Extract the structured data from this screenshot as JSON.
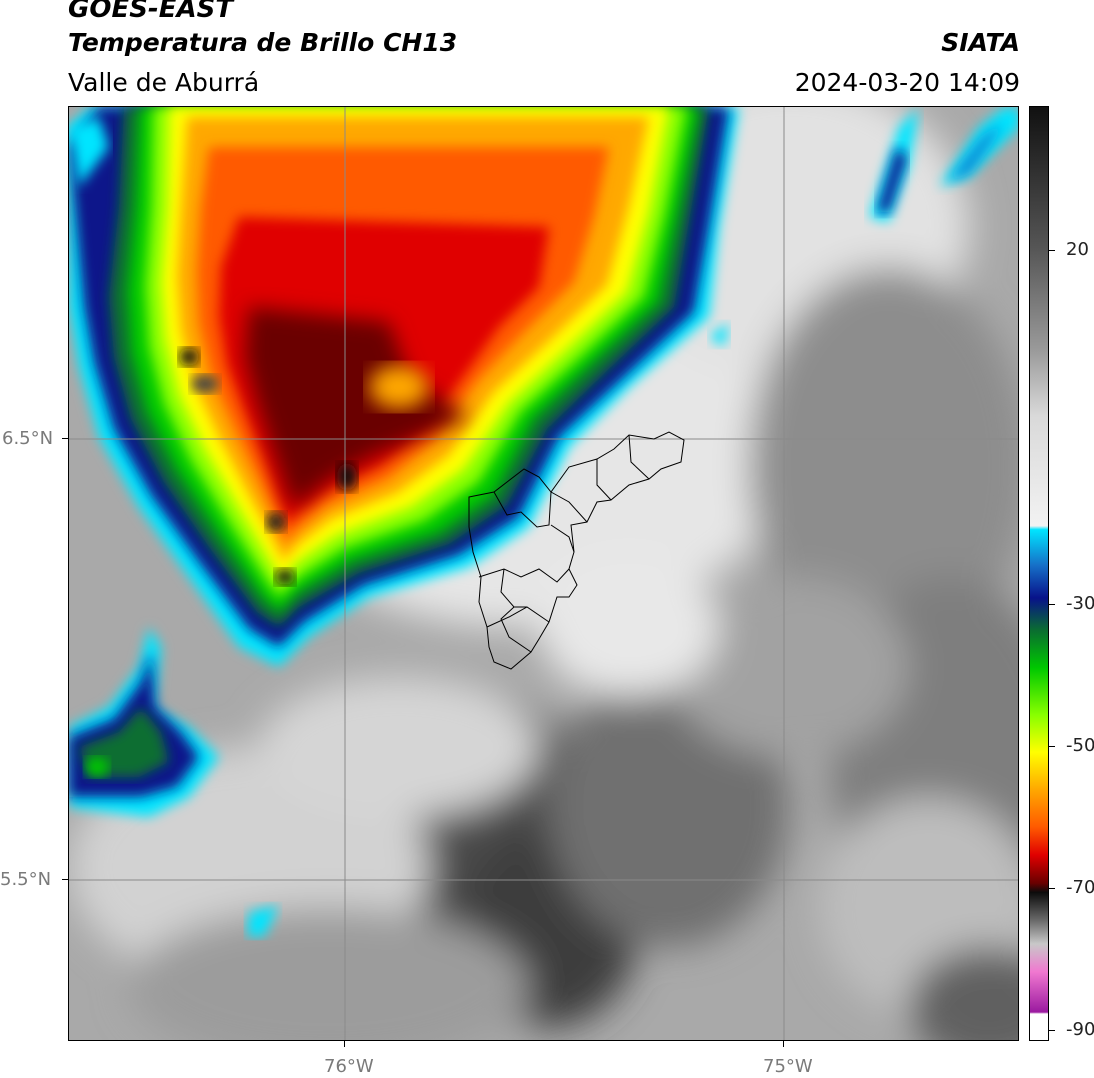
{
  "header": {
    "satellite": "GOES-EAST",
    "product": "Temperatura de Brillo CH13",
    "agency": "SIATA",
    "region": "Valle de Aburrá",
    "datetime": "2024-03-20 14:09"
  },
  "map": {
    "lat_labels": [
      "6.5°N",
      "5.5°N"
    ],
    "lon_labels": [
      "76°W",
      "75°W"
    ],
    "gridline_color": "#8a8a8a"
  },
  "colorbar": {
    "tick_labels": [
      "20",
      "-30",
      "-50",
      "-70",
      "-90"
    ],
    "stops": [
      {
        "color": "#111111"
      },
      {
        "color": "#555555"
      },
      {
        "color": "#9a9a9a"
      },
      {
        "color": "#d9d9d9"
      },
      {
        "color": "#f2f2f2"
      },
      {
        "color": "#00e5ff"
      },
      {
        "color": "#1670c8"
      },
      {
        "color": "#08128a"
      },
      {
        "color": "#0a6e30"
      },
      {
        "color": "#00c800"
      },
      {
        "color": "#88ff00"
      },
      {
        "color": "#ffff00"
      },
      {
        "color": "#ffa800"
      },
      {
        "color": "#ff5a00"
      },
      {
        "color": "#e00000"
      },
      {
        "color": "#6a0000"
      },
      {
        "color": "#0c0c0c"
      },
      {
        "color": "#6a6a6a"
      },
      {
        "color": "#c8c8c8"
      },
      {
        "color": "#f078d0"
      },
      {
        "color": "#9b1aa0"
      },
      {
        "color": "#ffffff"
      }
    ]
  }
}
